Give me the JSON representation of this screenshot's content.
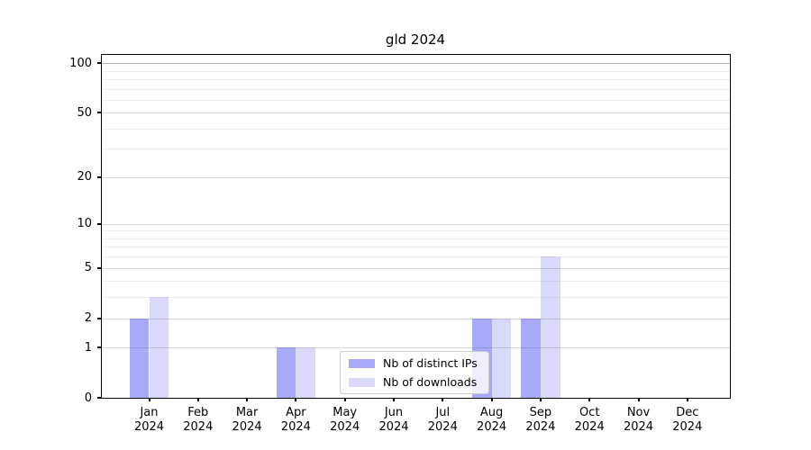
{
  "title": "gld 2024",
  "chart_data": {
    "type": "bar",
    "title": "gld 2024",
    "categories": [
      "Jan 2024",
      "Feb 2024",
      "Mar 2024",
      "Apr 2024",
      "May 2024",
      "Jun 2024",
      "Jul 2024",
      "Aug 2024",
      "Sep 2024",
      "Oct 2024",
      "Nov 2024",
      "Dec 2024"
    ],
    "series": [
      {
        "name": "Nb of distinct IPs",
        "color": "rgba(75,75,242,0.48)",
        "values": [
          2,
          0,
          0,
          1,
          0,
          0,
          0,
          2,
          2,
          0,
          0,
          0
        ]
      },
      {
        "name": "Nb of downloads",
        "color": "rgba(75,75,242,0.21)",
        "values": [
          3,
          0,
          0,
          1,
          0,
          0,
          0,
          2,
          6,
          0,
          0,
          0
        ]
      }
    ],
    "xlabel": "",
    "ylabel": "",
    "yscale": "log1p",
    "yticks": [
      0,
      1,
      2,
      5,
      10,
      20,
      50,
      100
    ],
    "minor_yticks": [
      3,
      4,
      6,
      7,
      8,
      9,
      30,
      40,
      60,
      70,
      80,
      90
    ],
    "ylim": [
      0,
      112
    ],
    "grid": true,
    "legend_position": "lower-center",
    "grid_major_color": "#d7d7d7",
    "grid_minor_color": "#ededed",
    "grid_100_color": "#b0b0b0"
  }
}
